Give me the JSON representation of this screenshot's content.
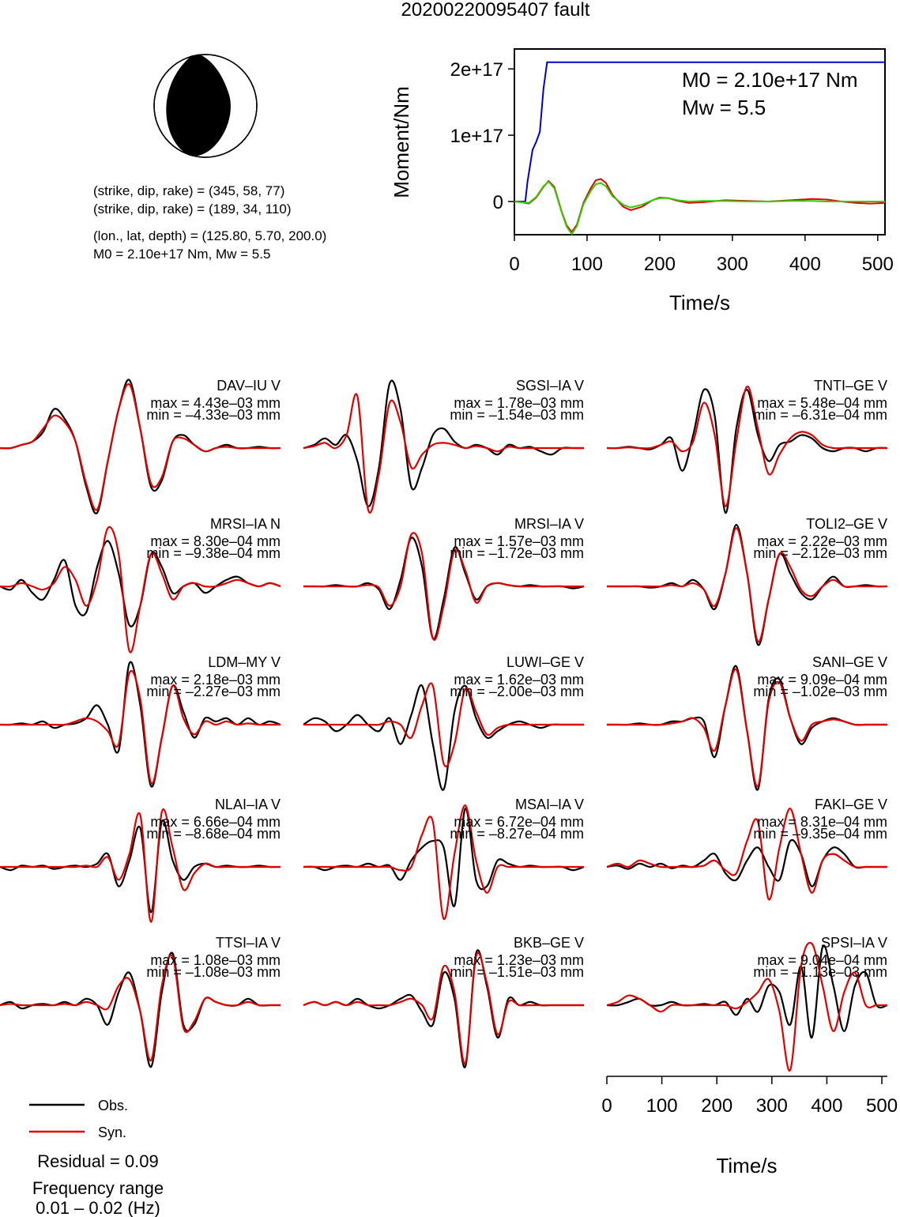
{
  "title": "20200220095407 fault",
  "mechanism": {
    "line1": "(strike, dip, rake) = (345, 58, 77)",
    "line2": "(strike, dip, rake) = (189, 34, 110)",
    "line3": "(lon., lat, depth) = (125.80, 5.70, 200.0)",
    "line4": "M0 = 2.10e+17 Nm, Mw = 5.5",
    "plane1": {
      "strike": 345,
      "dip": 58,
      "rake": 77
    },
    "plane2": {
      "strike": 189,
      "dip": 34,
      "rake": 110
    },
    "location": {
      "lon": 125.8,
      "lat": 5.7,
      "depth": 200.0
    }
  },
  "legend": {
    "obs": "Obs.",
    "syn": "Syn.",
    "obs_color": "#000000",
    "syn_color": "#e00000"
  },
  "residual": "Residual = 0.09",
  "freq_label": "Frequency range",
  "freq_value": "0.01 – 0.02 (Hz)",
  "chart_data": [
    {
      "type": "line",
      "title": "",
      "xlabel": "Time/s",
      "ylabel": "Moment/Nm",
      "xlim": [
        0,
        510
      ],
      "ylim": [
        -5e+16,
        2.3e+17
      ],
      "xticks": [
        0,
        100,
        200,
        300,
        400,
        500
      ],
      "xtick_labels": [
        "0",
        "100",
        "200",
        "300",
        "400",
        "500"
      ],
      "yticks": [
        0,
        1e+17,
        2e+17
      ],
      "ytick_labels": [
        "0",
        "1e+17",
        "2e+17"
      ],
      "annotation_m0": "M0 = 2.10e+17 Nm",
      "annotation_mw": "Mw = 5.5",
      "series": [
        {
          "color": "#0000cc",
          "x": [
            0,
            15,
            18,
            25,
            30,
            35,
            40,
            45,
            510
          ],
          "y": [
            0,
            0,
            3e+16,
            7.8e+16,
            9e+16,
            1.05e+17,
            1.7e+17,
            2.1e+17,
            2.1e+17
          ]
        },
        {
          "color": "#e00000",
          "x": [
            0,
            10,
            20,
            30,
            40,
            47,
            55,
            65,
            72,
            79,
            86,
            95,
            105,
            112,
            119,
            126,
            135,
            150,
            160,
            175,
            190,
            200,
            212,
            225,
            240,
            260,
            290,
            320,
            350,
            380,
            410,
            430,
            450,
            470,
            490,
            510
          ],
          "y": [
            0,
            -1000000000000000.0,
            -3000000000000000.0,
            6000000000000000.0,
            2.2e+16,
            3.1e+16,
            2.2e+16,
            -1.5e+16,
            -3.6e+16,
            -4.6e+16,
            -3.5e+16,
            -2000000000000000.0,
            2e+16,
            3.2e+16,
            3.4e+16,
            2.8e+16,
            1e+16,
            -8000000000000000.0,
            -1.3e+16,
            -8000000000000000.0,
            2000000000000000.0,
            6000000000000000.0,
            5000000000000000.0,
            1000000000000000.0,
            -2000000000000000.0,
            -1000000000000000.0,
            2000000000000000.0,
            1000000000000000.0,
            0,
            2000000000000000.0,
            4000000000000000.0,
            3000000000000000.0,
            0,
            -2000000000000000.0,
            -3000000000000000.0,
            -2000000000000000.0
          ]
        },
        {
          "color": "#33cc00",
          "x": [
            0,
            10,
            20,
            30,
            40,
            47,
            55,
            65,
            72,
            79,
            86,
            95,
            105,
            112,
            119,
            126,
            135,
            150,
            160,
            175,
            190,
            200,
            212,
            225,
            240,
            260,
            290,
            320,
            350,
            380,
            410,
            430,
            450,
            470,
            490,
            510
          ],
          "y": [
            0,
            -1000000000000000.0,
            -2000000000000000.0,
            7000000000000000.0,
            2.3e+16,
            3e+16,
            2e+16,
            -1.6e+16,
            -3.8e+16,
            -4.9e+16,
            -3.7e+16,
            -4000000000000000.0,
            1.6e+16,
            2.6e+16,
            2.8e+16,
            2.3e+16,
            8000000000000000.0,
            -5000000000000000.0,
            -9000000000000000.0,
            -5000000000000000.0,
            2000000000000000.0,
            5000000000000000.0,
            5000000000000000.0,
            2000000000000000.0,
            0,
            1000000000000000.0,
            1000000000000000.0,
            0,
            0,
            1000000000000000.0,
            1000000000000000.0,
            0,
            0,
            0,
            0,
            0
          ]
        }
      ]
    },
    {
      "type": "line",
      "xlabel": "Time/s",
      "xlim": [
        0,
        510
      ],
      "xticks": [
        0,
        100,
        200,
        300,
        400,
        500
      ],
      "xtick_labels": [
        "0",
        "100",
        "200",
        "300",
        "400",
        "500"
      ],
      "stations": [
        {
          "name": "DAV–IU V",
          "max": "max = 4.43e–03 mm",
          "min": "min = –4.33e–03 mm",
          "obs": "0,0,0.05,0.1,0.25,0.6,0.45,0.1,-0.6,-1.0,-0.2,0.6,1.05,0.3,-0.6,-0.5,0.1,0.2,0.05,-0.05,0,0.05,0,0,0.02,0,0",
          "syn": "0,0,0.05,0.1,0.3,0.5,0.4,0.1,-0.55,-0.95,-0.2,0.6,0.98,0.3,-0.55,-0.45,0.1,0.15,0.05,-0.05,0,0.02,0,0,0,0,0"
        },
        {
          "name": "SGSI–IA V",
          "max": "max = 1.78e–03 mm",
          "min": "min = –1.54e–03 mm",
          "obs": "0,0.05,0.15,0.05,0.2,-0.2,-0.9,-0.3,1.0,0.6,-0.6,-0.3,0.2,0.3,0.1,0,0.05,0,-0.1,0.05,0,0.02,-0.05,-0.1,0,0,0",
          "syn": "0,0.03,0.08,0,0.2,0.8,-0.95,-0.4,0.7,0.4,-0.3,-0.1,0.05,0.08,0.05,0,0.03,0,-0.05,0.02,0,0,0,0,0,0,0"
        },
        {
          "name": "TNTI–GE V",
          "max": "max = 5.48e–04 mm",
          "min": "min = –6.31e–04 mm",
          "obs": "0,0,0.02,0,-0.02,0.05,0.15,-0.35,0.2,0.9,0.5,-1.0,0.3,0.9,0.2,-0.2,0.05,0.1,0.2,0.15,0,-0.05,0,0,-0.05,0,0",
          "syn": "0,0,0.01,0,0,0.05,0.1,-0.05,0.1,0.7,0.2,-0.9,0.1,0.95,0.3,-0.4,-0.1,0.15,0.25,0.2,0.05,0,0,0,0,0,0"
        },
        {
          "name": "MRSI–IA N",
          "max": "max = 8.30e–04 mm",
          "min": "min = –9.38e–04 mm",
          "obs": "0,-0.05,0.1,-0.1,-0.2,0.1,0.4,-0.3,-0.4,0.3,0.7,0.2,-0.6,-0.3,0.5,0.3,-0.1,0,0.05,-0.1,0,0.1,0.15,0.05,0,0.05,0",
          "syn": "0,0,0.05,0,-0.05,0.05,0.3,0.1,-0.3,0.1,0.9,0.5,-1.0,-0.3,0.5,0.2,-0.2,0,0.05,0,0,0.05,0.1,0.05,0,0.05,0"
        },
        {
          "name": "MRSI–IA V",
          "max": "max = 1.57e–03 mm",
          "min": "min = –1.72e–03 mm",
          "obs": "0,0,0,0.02,0,0,0.05,-0.05,-0.35,0.1,0.75,0.3,-0.8,-0.2,0.6,0.2,-0.2,0,0.05,0.02,0,0.02,0,0,0,-0.03,0",
          "syn": "0,0,0,0,0,0,0.02,-0.02,-0.3,0,0.8,0.5,-0.8,-0.3,0.55,0.25,-0.25,0,0.05,0.02,0,0,0,0,0,0,0"
        },
        {
          "name": "TOLI2–GE V",
          "max": "max = 2.22e–03 mm",
          "min": "min = –2.12e–03 mm",
          "obs": "0,0,0,0,-0.02,0,0.05,0,0.1,-0.05,-0.35,0.2,0.95,0.2,-0.9,-0.2,0.5,0.2,-0.1,-0.2,0,0.15,0,0,0.02,0,0",
          "syn": "0,0,0,0,0,0,0.02,0,0.05,-0.05,-0.3,0.2,0.9,0.2,-0.85,-0.2,0.5,0.3,-0.05,-0.15,0,0.1,0,0,0,0,0"
        },
        {
          "name": "LDM–MY V",
          "max": "max = 2.18e–03 mm",
          "min": "min = –2.27e–03 mm",
          "obs": "0,0,0.02,0,0.05,-0.05,0,0.02,0.1,0.3,0,-0.4,0.95,0.3,-0.95,-0.2,0.6,0.2,-0.2,0.1,0.05,0.1,0.0,0.1,0,0.05,0",
          "syn": "0,0,0,0,0,0,0,0.05,0.1,0.05,-0.1,-0.3,0.8,0.4,-0.9,-0.2,0.6,0.1,-0.15,0.05,0,0.05,0,0.02,0,0,0"
        },
        {
          "name": "LUWI–GE V",
          "max": "max = 1.62e–03 mm",
          "min": "min = –2.00e–03 mm",
          "obs": "0,0.1,0.05,-0.1,0,0.15,0,-0.1,0.1,-0.3,0.15,0.6,-0.3,-1.0,0.2,0.6,0.1,-0.2,-0.1,0,0.05,0,-0.05,0,0,0,0",
          "syn": "0,0,0,0,0,0,0,0,0.05,0,-0.2,0.3,0.6,-0.6,-0.3,0.55,0.2,-0.15,-0.05,0,0,0,0,0,0,0,0"
        },
        {
          "name": "SANI–GE V",
          "max": "max = 9.09e–04 mm",
          "min": "min = –1.02e–03 mm",
          "obs": "0,0,0,0.02,0,0,0.05,0.05,0.1,0.05,-0.5,0.3,0.9,-0.1,-1.0,0.4,0.7,0.1,-0.3,-0.05,0.05,0.1,0.05,0,0,0,0",
          "syn": "0,0,0,0,0,0,0.02,0.05,0.1,-0.05,-0.4,0.3,0.85,-0.1,-0.95,0.35,0.65,0.1,-0.25,0,0.05,0.08,0.05,0,0,0,0"
        },
        {
          "name": "NLAI–IA V",
          "max": "max = 6.66e–04 mm",
          "min": "min = –8.68e–04 mm",
          "obs": "0,-0.05,0.02,0,0.02,-0.03,0,0.02,0,0.05,0.2,-0.3,0.1,0.6,-0.7,0.7,0.1,-0.2,0,0.05,0,0.02,0,0,0.02,0,0",
          "syn": "0,0,0,0,0,0,0,0,0.02,0,0.15,-0.2,0.2,0.8,-0.85,0.85,0.3,-0.35,-0.1,0.05,0,0,0,0,0,0,0"
        },
        {
          "name": "MSAI–IA V",
          "max": "max = 6.72e–04 mm",
          "min": "min = –8.27e–04 mm",
          "obs": "0,0,-0.05,0,0.02,0,0.05,0,0.02,-0.2,0.1,0.3,0.4,0.3,-0.6,0.9,-0.2,-0.3,0.1,0.05,0,0.02,0,0,0,-0.05,0",
          "syn": "0,0,0,0,0,0,0,0,0,-0.05,0,0.5,0.7,-0.8,0.2,0.95,0.1,-0.4,0,0,0,0,0,0,0,0,0"
        },
        {
          "name": "FAKI–GE V",
          "max": "max = 8.31e–04 mm",
          "min": "min = –9.35e–04 mm",
          "obs": "0,0.02,-0.03,0.05,0,0.05,-0.02,0.02,0,0.1,0.2,-0.1,-0.2,0.1,0.3,0.0,-0.2,0.4,0.2,-0.3,0.1,0.3,0.2,0,0,0,0",
          "syn": "0,0.05,0,0.1,0.05,0,0,0,0,0.02,0.1,-0.05,-0.1,0.4,0.7,-0.5,0.3,0.9,0.2,-0.4,0.1,0.2,0.1,0,0,0,0"
        },
        {
          "name": "TTSI–IA V",
          "max": "max = 1.08e–03 mm",
          "min": "min = –1.08e–03 mm",
          "obs": "0,0.05,-0.05,0,0.02,0,0.05,0,0.1,0,-0.3,0.2,0.5,-0.1,-0.95,0.2,0.8,-0.3,-0.3,0.1,0.05,0,0,0.1,0,0,0",
          "syn": "0,0.02,0,0,0,0,0.02,0,0.05,0,-0.05,0.3,0.4,-0.1,-0.85,0.3,0.75,-0.35,-0.25,0.1,0.05,0,0,0.05,0,0,0"
        },
        {
          "name": "BKB–GE V",
          "max": "max = 1.23e–03 mm",
          "min": "min = –1.51e–03 mm",
          "obs": "0,0.05,0,0.05,0,0.1,0,-0.05,0,0.1,0.15,-0.1,-0.3,0.5,0.1,-0.95,0.8,0.3,-0.5,0.1,0,0.05,0,0,0,0,0",
          "syn": "0,0.05,0,0.05,0,0.05,0,0,0,0.05,0.1,0,-0.2,0.6,0.2,-0.9,0.75,0.35,-0.45,0.05,0,0,0,0,0,0,0"
        },
        {
          "name": "SPSI–IA V",
          "max": "max = 9.04e–04 mm",
          "min": "min = –1.13e–03 mm",
          "obs": "0,0,0.05,0.1,0,0,0.05,0,0,0.02,0,0.05,-0.15,0.1,-0.1,0.3,0.2,-0.3,0.6,-0.5,0.9,0.3,-0.4,0.3,0.5,0,0",
          "syn": "0,0.05,0.15,0.1,0,-0.1,0,0,0,0,0,0,-0.05,0.05,0.2,0.4,-0.1,-1.0,0.6,0.95,0.3,-0.4,0.2,0.5,0,0,0"
        }
      ]
    }
  ]
}
